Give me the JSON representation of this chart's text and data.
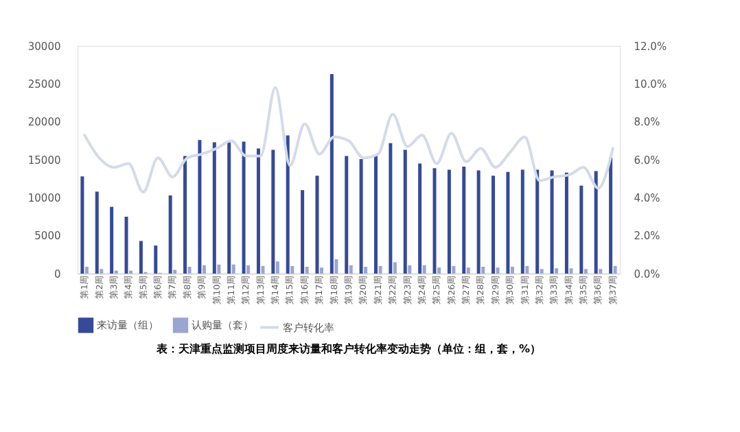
{
  "chart_data": {
    "type": "bar",
    "title": "表：天津重点监测项目周度来访量和客户转化率变动走势（单位：组，套，%）",
    "categories": [
      "第1周",
      "第2周",
      "第3周",
      "第4周",
      "第5周",
      "第6周",
      "第7周",
      "第8周",
      "第9周",
      "第10周",
      "第11周",
      "第12周",
      "第13周",
      "第14周",
      "第15周",
      "第16周",
      "第17周",
      "第18周",
      "第19周",
      "第20周",
      "第21周",
      "第22周",
      "第23周",
      "第24周",
      "第25周",
      "第26周",
      "第27周",
      "第28周",
      "第29周",
      "第30周",
      "第31周",
      "第32周",
      "第33周",
      "第34周",
      "第35周",
      "第36周",
      "第37周"
    ],
    "series": [
      {
        "name": "来访量（组）",
        "color": "#354a99",
        "values": [
          12800,
          10800,
          8800,
          7500,
          4300,
          3700,
          10300,
          15500,
          17600,
          17300,
          17300,
          17400,
          16500,
          16300,
          18200,
          11000,
          12900,
          26300,
          15500,
          15100,
          15600,
          17200,
          16300,
          14500,
          13900,
          13700,
          14100,
          13600,
          12900,
          13400,
          13700,
          13700,
          13600,
          13300,
          11600,
          13500,
          15300
        ]
      },
      {
        "name": "认购量（套）",
        "color": "#9aa5d1",
        "values": [
          900,
          600,
          400,
          400,
          200,
          100,
          500,
          900,
          1100,
          1200,
          1200,
          1100,
          1000,
          1600,
          1000,
          900,
          800,
          1900,
          1100,
          900,
          1000,
          1500,
          1100,
          1100,
          800,
          1000,
          800,
          900,
          800,
          900,
          1000,
          600,
          700,
          700,
          600,
          600,
          1000
        ]
      },
      {
        "name": "客户转化率",
        "type": "line",
        "axis": "y2",
        "line_style": "solid",
        "color": "#d5daea",
        "values": [
          7.3,
          6.1,
          5.6,
          5.8,
          4.3,
          6.1,
          5.1,
          6.1,
          6.3,
          6.6,
          7.0,
          6.2,
          6.2,
          9.8,
          5.7,
          7.9,
          6.3,
          7.2,
          7.0,
          6.1,
          6.3,
          8.4,
          6.7,
          7.3,
          5.8,
          7.4,
          5.9,
          6.6,
          5.6,
          6.4,
          7.2,
          4.9,
          5.1,
          5.2,
          5.6,
          4.5,
          6.6
        ]
      }
    ],
    "ylim": [
      0,
      30000
    ],
    "yticks": [
      0,
      5000,
      10000,
      15000,
      20000,
      25000,
      30000
    ],
    "y2lim": [
      0,
      12
    ],
    "y2ticks": [
      {
        "value": 0,
        "label": "0.0%"
      },
      {
        "value": 2,
        "label": "2.0%"
      },
      {
        "value": 4,
        "label": "4.0%"
      },
      {
        "value": 6,
        "label": "6.0%"
      },
      {
        "value": 8,
        "label": "8.0%"
      },
      {
        "value": 10,
        "label": "10.0%"
      },
      {
        "value": 12,
        "label": "12.0%"
      }
    ],
    "grid": false,
    "legend": "bottom"
  }
}
